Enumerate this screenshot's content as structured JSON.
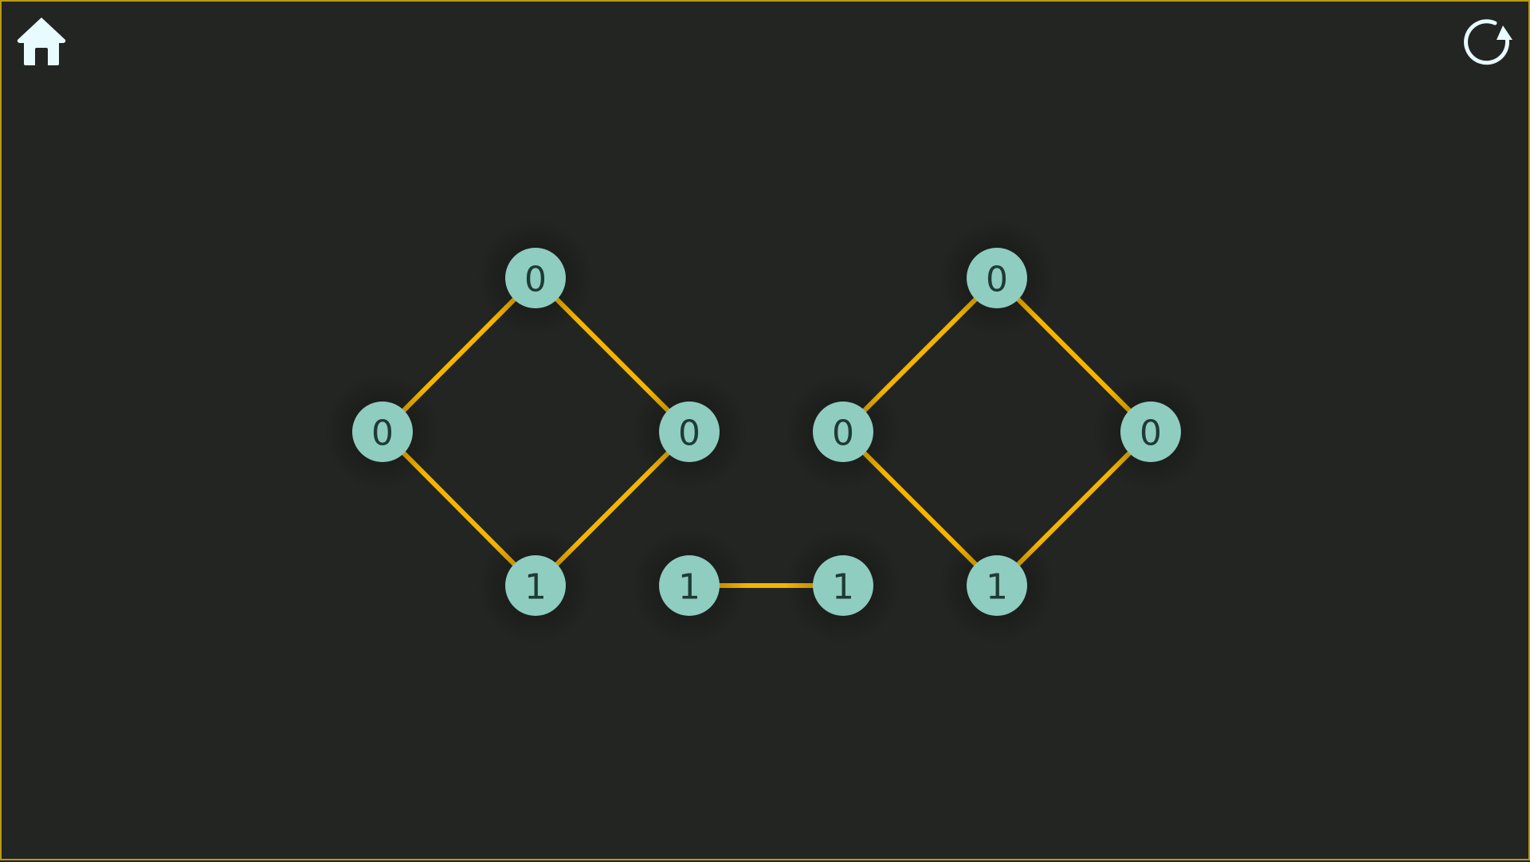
{
  "colors": {
    "background": "#232522",
    "frame_border": "#b99a12",
    "node_fill": "#8ecdc0",
    "node_text": "#1f3a34",
    "edge": "#f4b400",
    "icon": "#e8fbff"
  },
  "toolbar": {
    "home_icon": "home-icon",
    "reset_icon": "restart-icon"
  },
  "graph": {
    "nodes": [
      {
        "id": "n1",
        "value": "0"
      },
      {
        "id": "n2",
        "value": "0"
      },
      {
        "id": "n3",
        "value": "0"
      },
      {
        "id": "n4",
        "value": "1"
      },
      {
        "id": "n5",
        "value": "1"
      },
      {
        "id": "n6",
        "value": "1"
      },
      {
        "id": "n7",
        "value": "0"
      },
      {
        "id": "n8",
        "value": "0"
      },
      {
        "id": "n9",
        "value": "0"
      },
      {
        "id": "n10",
        "value": "1"
      }
    ],
    "edges": [
      [
        "n1",
        "n2"
      ],
      [
        "n1",
        "n3"
      ],
      [
        "n2",
        "n4"
      ],
      [
        "n3",
        "n4"
      ],
      [
        "n5",
        "n6"
      ],
      [
        "n7",
        "n8"
      ],
      [
        "n7",
        "n9"
      ],
      [
        "n8",
        "n10"
      ],
      [
        "n9",
        "n10"
      ]
    ]
  }
}
